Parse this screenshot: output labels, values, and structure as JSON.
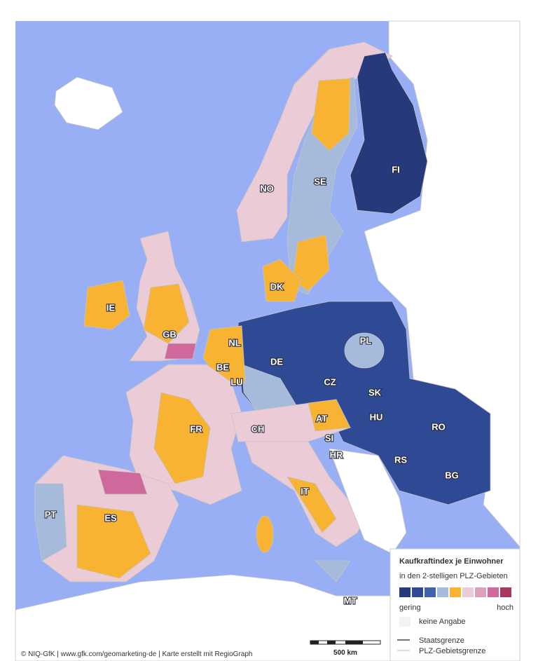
{
  "map": {
    "countries": [
      "NO",
      "SE",
      "FI",
      "DK",
      "IE",
      "GB",
      "NL",
      "BE",
      "LU",
      "DE",
      "PL",
      "CZ",
      "SK",
      "HU",
      "AT",
      "RO",
      "CH",
      "SI",
      "HR",
      "RS",
      "BG",
      "FR",
      "IT",
      "ES",
      "PT",
      "MT"
    ],
    "legend": {
      "title": "Kaufkraftindex je Einwohner",
      "subtitle": "in den 2-stelligen PLZ-Gebieten",
      "colors": [
        "#26397a",
        "#2f4a94",
        "#4160ad",
        "#a6badb",
        "#f8b333",
        "#ebcbd6",
        "#dea0bd",
        "#d0699b",
        "#a83761"
      ],
      "low": "gering",
      "high": "hoch",
      "no_data": "keine Angabe",
      "border_country": "Staatsgrenze",
      "border_plz": "PLZ-Gebietsgrenze"
    },
    "scale": "500 km",
    "credit": "© NIQ-GfK | www.gfk.com/geomarketing-de | Karte erstellt mit RegioGraph"
  }
}
